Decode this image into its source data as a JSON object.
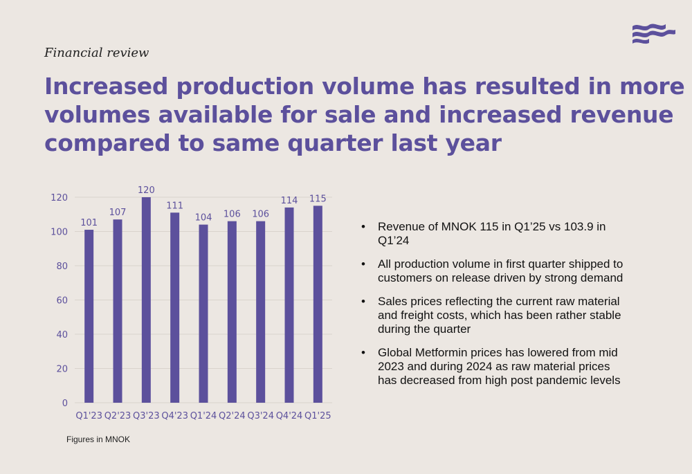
{
  "header": {
    "eyebrow": "Financial review",
    "headline_lines": [
      "Increased production volume has resulted in more",
      "volumes available for sale and increased revenue",
      "compared to same quarter last year"
    ],
    "brand_color": "#5c509c"
  },
  "chart_data": {
    "type": "bar",
    "categories": [
      "Q1'23",
      "Q2'23",
      "Q3'23",
      "Q4'23",
      "Q1'24",
      "Q2'24",
      "Q3'24",
      "Q4'24",
      "Q1'25"
    ],
    "values": [
      101,
      107,
      120,
      111,
      104,
      106,
      106,
      114,
      115
    ],
    "data_labels": [
      "101",
      "107",
      "120",
      "111",
      "104",
      "106",
      "106",
      "114",
      "115"
    ],
    "title": "",
    "xlabel": "",
    "ylabel": "",
    "ylim": [
      0,
      120
    ],
    "yticks": [
      0,
      20,
      40,
      60,
      80,
      100,
      120
    ],
    "grid": true,
    "bar_color": "#5c509c"
  },
  "footnote": "Figures in MNOK",
  "bullets": [
    "Revenue of MNOK 115 in Q1’25 vs 103.9 in Q1’24",
    "All production volume in first quarter shipped to customers on release driven by strong demand",
    "Sales prices reflecting the current raw material and freight costs, which has been rather stable during the quarter",
    "Global Metformin prices has lowered from mid 2023 and during 2024 as raw material prices has decreased from high post pandemic levels"
  ]
}
